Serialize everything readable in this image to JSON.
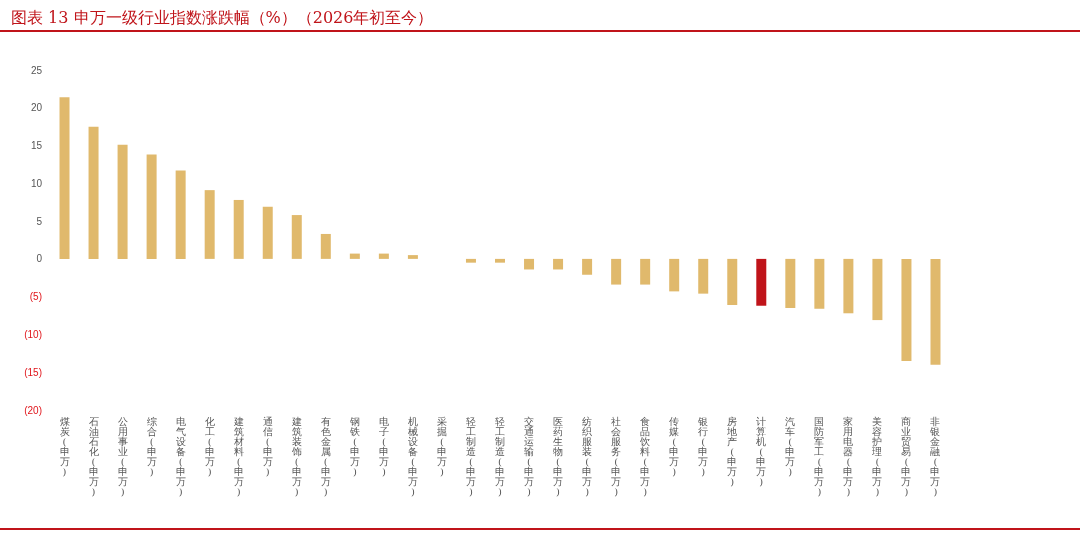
{
  "chart_data": {
    "type": "bar",
    "title": "图表 13 申万一级行业指数涨跌幅（%）（2026年初至今）",
    "categories": [
      "煤炭(申万)",
      "石油石化(申万)",
      "公用事业(申万)",
      "综合(申万)",
      "电气设备(申万)",
      "化工(申万)",
      "建筑材料(申万)",
      "通信(申万)",
      "建筑装饰(申万)",
      "有色金属(申万)",
      "钢铁(申万)",
      "电子(申万)",
      "机械设备(申万)",
      "采掘(申万)",
      "轻工制造(申万)",
      "轻工制造(申万)",
      "交通运输(申万)",
      "医药生物(申万)",
      "纺织服装(申万)",
      "社会服务(申万)",
      "食品饮料(申万)",
      "传媒(申万)",
      "银行(申万)",
      "房地产(申万)",
      "计算机(申万)",
      "汽车(申万)",
      "国防军工(申万)",
      "家用电器(申万)",
      "美容护理(申万)",
      "商业贸易(申万)",
      "非银金融(申万)"
    ],
    "values": [
      21.4,
      17.5,
      15.1,
      13.8,
      11.7,
      9.1,
      7.8,
      6.9,
      5.8,
      3.3,
      0.7,
      0.7,
      0.5,
      0,
      -0.5,
      -0.5,
      -1.4,
      -1.4,
      -2.1,
      -3.4,
      -3.4,
      -4.3,
      -4.6,
      -6.1,
      -6.2,
      -6.5,
      -6.6,
      -7.2,
      -8.1,
      -13.5,
      -14.0
    ],
    "colors": [
      "#e0b96c",
      "#e0b96c",
      "#e0b96c",
      "#e0b96c",
      "#e0b96c",
      "#e0b96c",
      "#e0b96c",
      "#e0b96c",
      "#e0b96c",
      "#e0b96c",
      "#e0b96c",
      "#e0b96c",
      "#e0b96c",
      "#e0b96c",
      "#e0b96c",
      "#e0b96c",
      "#e0b96c",
      "#e0b96c",
      "#e0b96c",
      "#e0b96c",
      "#e0b96c",
      "#e0b96c",
      "#e0b96c",
      "#e0b96c",
      "#c0141a",
      "#e0b96c",
      "#e0b96c",
      "#e0b96c",
      "#e0b96c",
      "#e0b96c",
      "#e0b96c"
    ],
    "ylim": [
      -20,
      25
    ],
    "yticks": [
      25,
      20,
      15,
      10,
      5,
      0,
      {
        "value": -5,
        "label": "(5)"
      },
      {
        "value": -10,
        "label": "(10)"
      },
      {
        "value": -15,
        "label": "(15)"
      },
      {
        "value": -20,
        "label": "(20)"
      }
    ],
    "grid": false
  }
}
